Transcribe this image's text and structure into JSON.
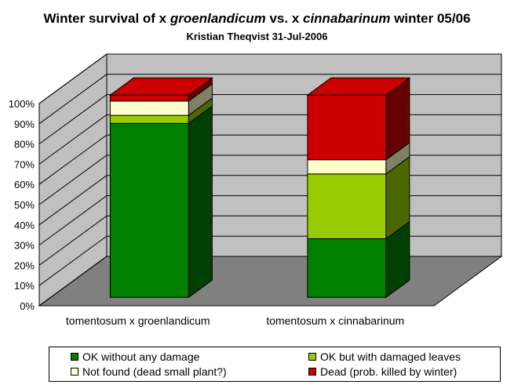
{
  "title": {
    "p1": "Winter survival of x ",
    "p2": "groenlandicum",
    "p3": " vs. x ",
    "p4": "cinnabarinum",
    "p5": " winter 05/06"
  },
  "subtitle": "Kristian Theqvist 31-Jul-2006",
  "chart_data": {
    "type": "bar",
    "stacked": true,
    "three_d": true,
    "categories": [
      "tomentosum x groenlandicum",
      "tomentosum x cinnabarinum"
    ],
    "series": [
      {
        "name": "OK without any damage",
        "color": "#008000",
        "values": [
          86,
          29
        ]
      },
      {
        "name": "OK but with damaged leaves",
        "color": "#99cc00",
        "values": [
          4,
          32
        ]
      },
      {
        "name": "Not found (dead small plant?)",
        "color": "#ffffcc",
        "values": [
          7,
          7
        ]
      },
      {
        "name": "Dead (prob. killed by winter)",
        "color": "#cc0000",
        "values": [
          3,
          32
        ]
      }
    ],
    "y_ticks": [
      "0%",
      "10%",
      "20%",
      "30%",
      "40%",
      "50%",
      "60%",
      "70%",
      "80%",
      "90%",
      "100%"
    ],
    "ylim": [
      0,
      100
    ],
    "grid": true,
    "legend_position": "bottom"
  },
  "legend": {
    "items": [
      "OK without any damage",
      "OK but with damaged leaves",
      "Not found (dead small plant?)",
      "Dead (prob. killed by winter)"
    ]
  }
}
